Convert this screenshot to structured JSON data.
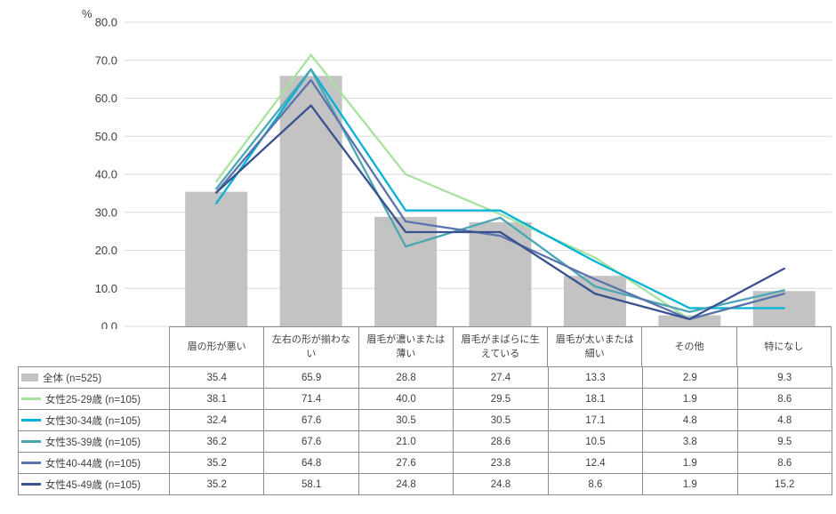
{
  "chart_data": {
    "type": "combo-bar-line",
    "title": "",
    "ylabel": "%",
    "xlabel": "",
    "ylim": [
      0,
      80
    ],
    "ytick_step": 10,
    "grid": true,
    "legend_position": "table-left",
    "categories": [
      "眉の形が悪い",
      "左右の形が揃わない",
      "眉毛が濃いまたは薄い",
      "眉毛がまばらに生えている",
      "眉毛が太いまたは細い",
      "その他",
      "特になし"
    ],
    "series": [
      {
        "name": "全体 (n=525)",
        "type": "bar",
        "color": "#c3c3c3",
        "values": [
          35.4,
          65.9,
          28.8,
          27.4,
          13.3,
          2.9,
          9.3
        ]
      },
      {
        "name": "女性25-29歳 (n=105)",
        "type": "line",
        "color": "#a9e2a0",
        "values": [
          38.1,
          71.4,
          40.0,
          29.5,
          18.1,
          1.9,
          8.6
        ]
      },
      {
        "name": "女性30-34歳 (n=105)",
        "type": "line",
        "color": "#00b2d8",
        "values": [
          32.4,
          67.6,
          30.5,
          30.5,
          17.1,
          4.8,
          4.8
        ]
      },
      {
        "name": "女性35-39歳 (n=105)",
        "type": "line",
        "color": "#4ba6b4",
        "values": [
          36.2,
          67.6,
          21.0,
          28.6,
          10.5,
          3.8,
          9.5
        ]
      },
      {
        "name": "女性40-44歳 (n=105)",
        "type": "line",
        "color": "#5a73ae",
        "values": [
          35.2,
          64.8,
          27.6,
          23.8,
          12.4,
          1.9,
          8.6
        ]
      },
      {
        "name": "女性45-49歳 (n=105)",
        "type": "line",
        "color": "#39518f",
        "values": [
          35.2,
          58.1,
          24.8,
          24.8,
          8.6,
          1.9,
          15.2
        ]
      }
    ],
    "colors": {
      "grid": "#d9d9d9",
      "axis_text": "#404040",
      "table_border": "#8c8c8c"
    }
  }
}
